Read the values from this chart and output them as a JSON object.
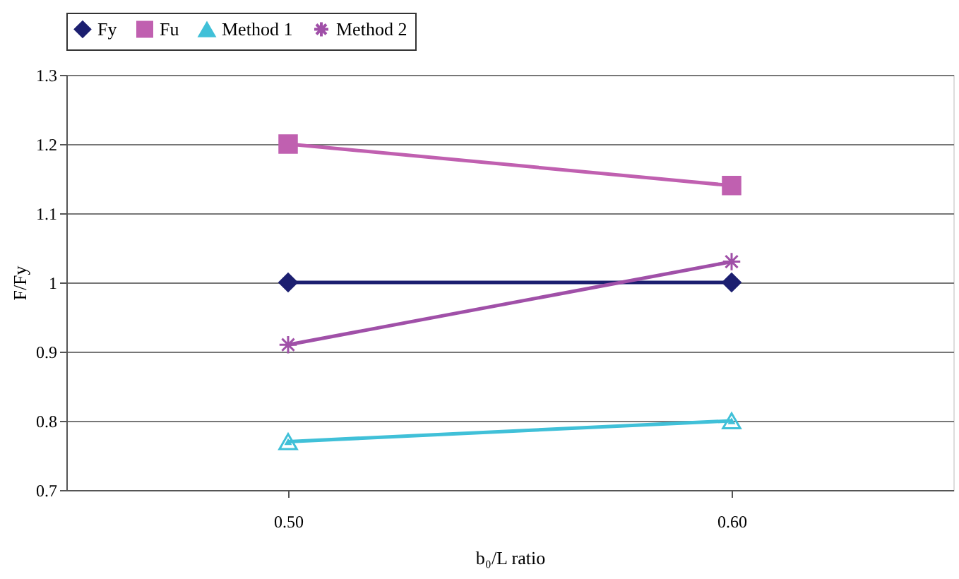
{
  "chart_data": {
    "type": "line",
    "xlabel": "b₀/L ratio",
    "ylabel": "F/Fy",
    "categories": [
      "0.50",
      "0.60"
    ],
    "series": [
      {
        "name": "Fy",
        "color": "#1c1f70",
        "marker": "diamond",
        "values": [
          1,
          1
        ]
      },
      {
        "name": "Fu",
        "color": "#c060b0",
        "marker": "square",
        "values": [
          1.2,
          1.14
        ]
      },
      {
        "name": "Method 1",
        "color": "#40c0d8",
        "marker": "triangle",
        "values": [
          0.77,
          0.8
        ]
      },
      {
        "name": "Method 2",
        "color": "#a050a8",
        "marker": "cross",
        "values": [
          0.91,
          1.03
        ]
      }
    ],
    "ylim": [
      0.7,
      1.3
    ],
    "yticks": [
      0.7,
      0.8,
      0.9,
      1,
      1.1,
      1.2,
      1.3
    ],
    "grid": "y",
    "legend": "top"
  }
}
